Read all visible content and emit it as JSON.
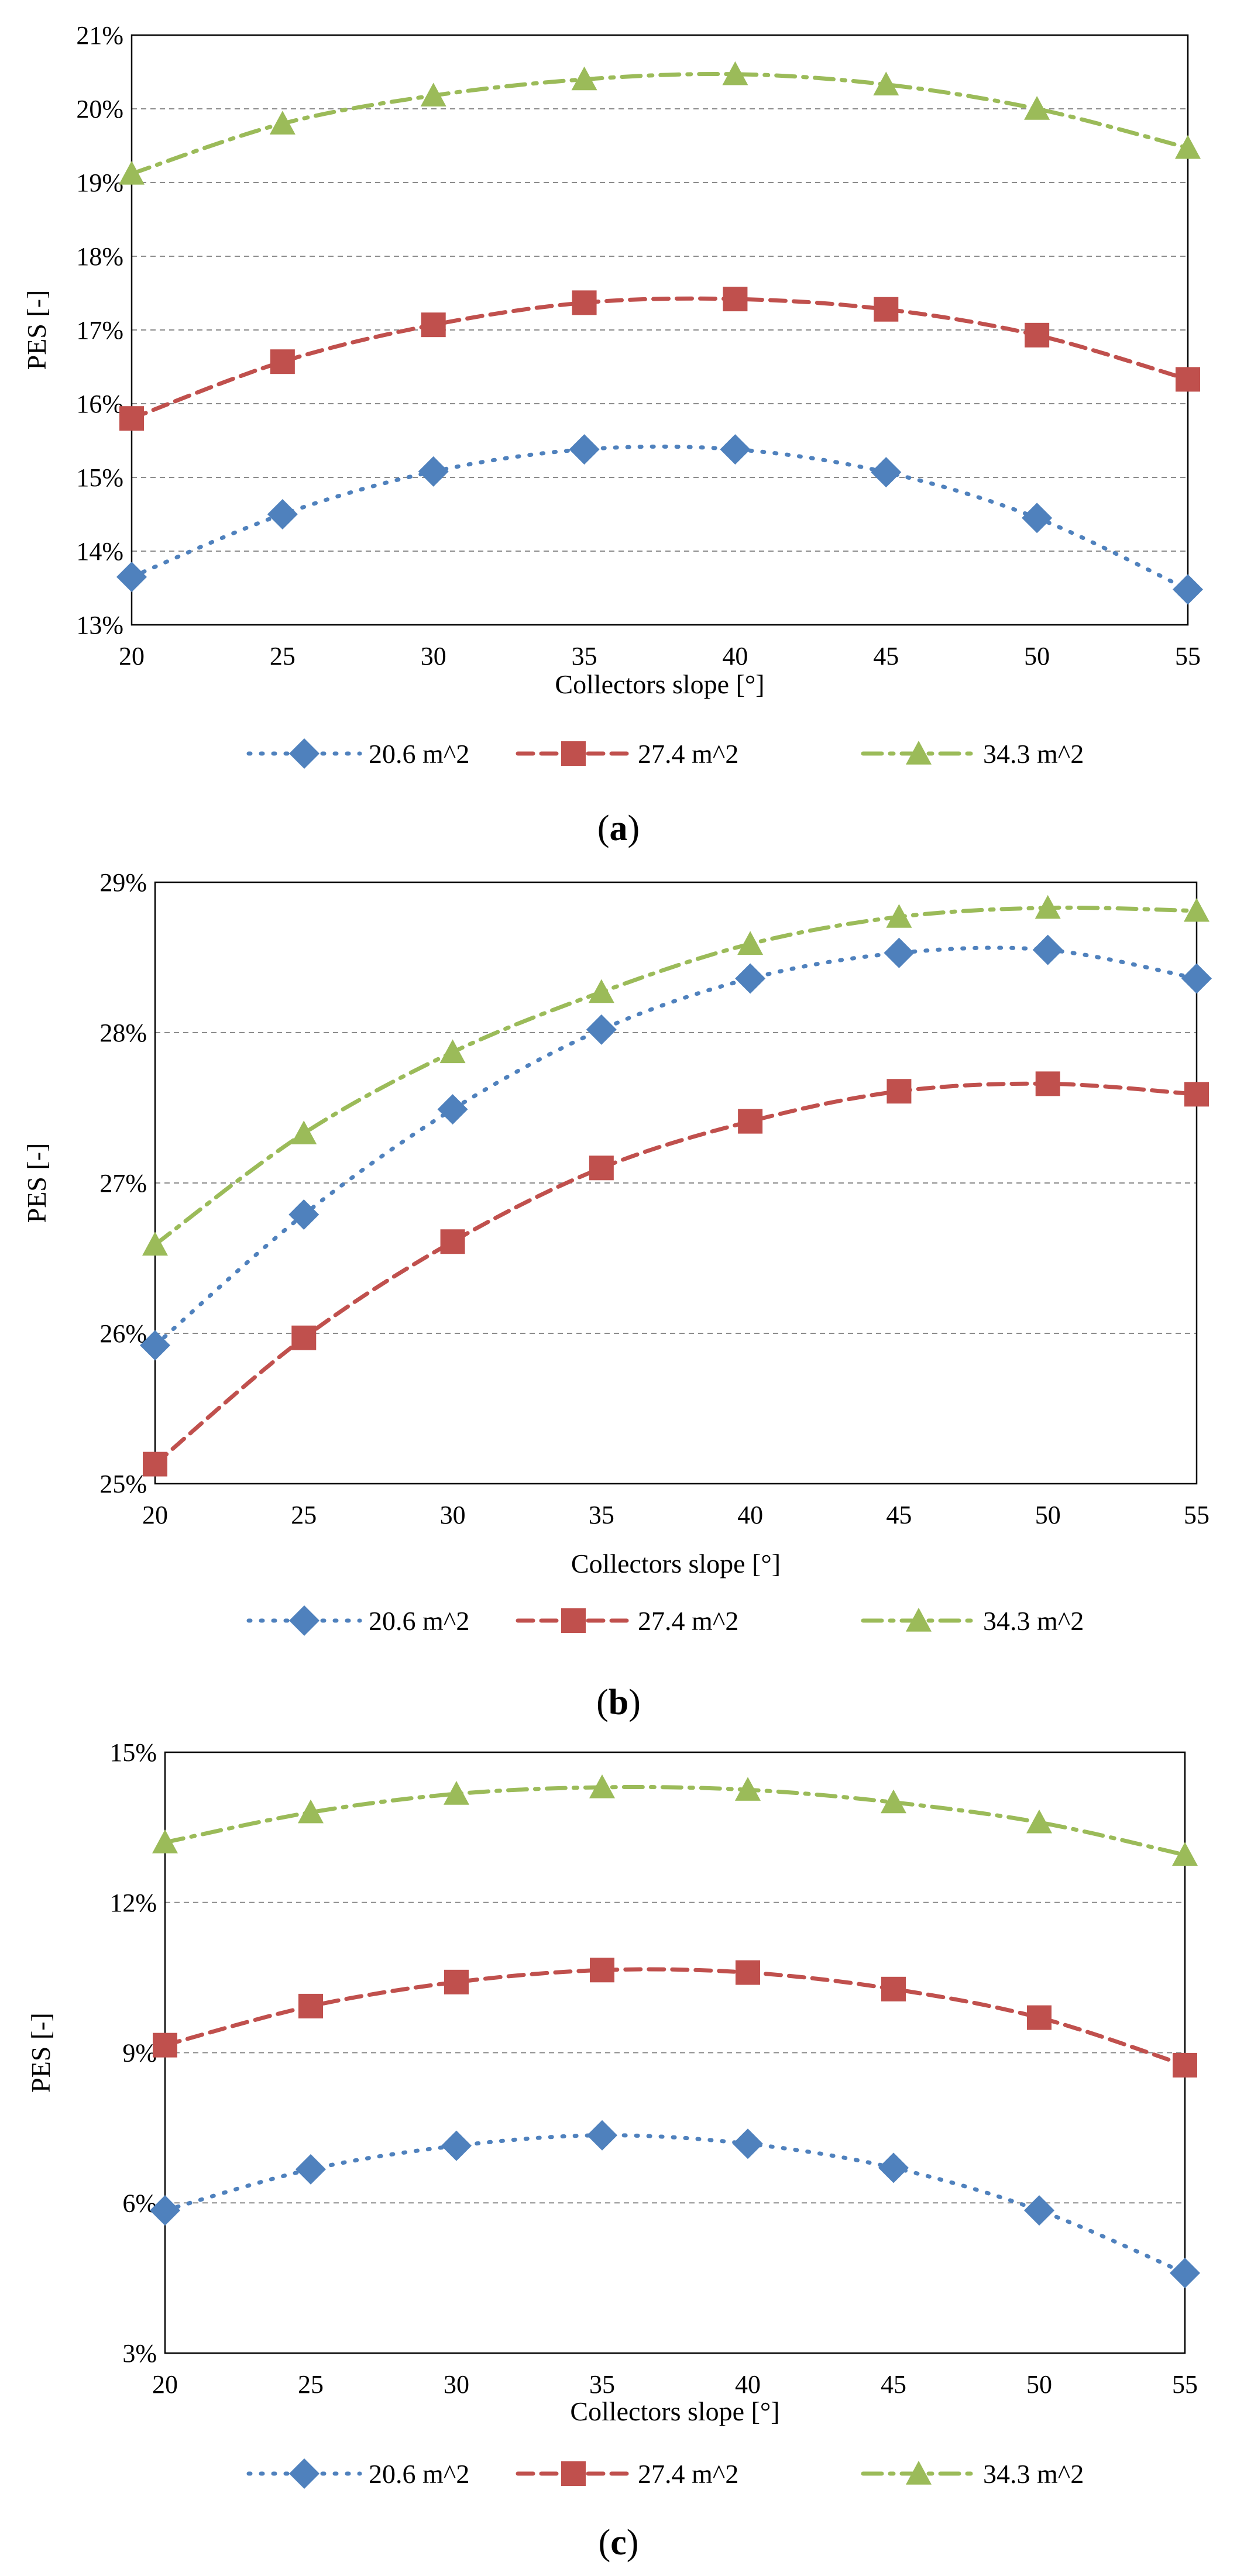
{
  "chart_data": [
    {
      "type": "line",
      "panel": "a",
      "caption_open": "(",
      "caption_letter": "a",
      "caption_close": ")",
      "xlabel": "Collectors slope [°]",
      "ylabel": "PES [-]",
      "x": [
        20,
        25,
        30,
        35,
        40,
        45,
        50,
        55
      ],
      "x_tick_labels": [
        "20",
        "25",
        "30",
        "35",
        "40",
        "45",
        "50",
        "55"
      ],
      "ylim": [
        13,
        21
      ],
      "y_ticks": [
        13,
        14,
        15,
        16,
        17,
        18,
        19,
        20,
        21
      ],
      "y_tick_labels": [
        "13%",
        "14%",
        "15%",
        "16%",
        "17%",
        "18%",
        "19%",
        "20%",
        "21%"
      ],
      "grid": "horizontal dashed",
      "legend_position": "bottom",
      "series": [
        {
          "name": "20.6 m^2",
          "color": "#4F81BD",
          "marker": "diamond",
          "line_style": "dotted",
          "values": [
            13.65,
            14.5,
            15.08,
            15.38,
            15.38,
            15.07,
            14.45,
            13.48
          ]
        },
        {
          "name": "27.4 m^2",
          "color": "#C0504D",
          "marker": "square",
          "line_style": "dashed",
          "values": [
            15.8,
            16.57,
            17.07,
            17.37,
            17.42,
            17.28,
            16.93,
            16.33
          ]
        },
        {
          "name": "34.3 m^2",
          "color": "#9BBB59",
          "marker": "triangle",
          "line_style": "dash-dot",
          "values": [
            19.12,
            19.8,
            20.18,
            20.4,
            20.47,
            20.33,
            20.0,
            19.47
          ]
        }
      ]
    },
    {
      "type": "line",
      "panel": "b",
      "caption_open": "(",
      "caption_letter": "b",
      "caption_close": ")",
      "xlabel": "Collectors slope [°]",
      "ylabel": "PES [-]",
      "x": [
        20,
        25,
        30,
        35,
        40,
        45,
        50,
        55
      ],
      "x_tick_labels": [
        "20",
        "25",
        "30",
        "35",
        "40",
        "45",
        "50",
        "55"
      ],
      "ylim": [
        25,
        29
      ],
      "y_ticks": [
        25,
        26,
        27,
        28,
        29
      ],
      "y_tick_labels": [
        "25%",
        "26%",
        "27%",
        "28%",
        "29%"
      ],
      "grid": "horizontal dashed",
      "legend_position": "bottom",
      "series": [
        {
          "name": "20.6 m^2",
          "color": "#4F81BD",
          "marker": "diamond",
          "line_style": "dotted",
          "values": [
            25.92,
            26.79,
            27.49,
            28.02,
            28.36,
            28.53,
            28.55,
            28.36
          ]
        },
        {
          "name": "27.4 m^2",
          "color": "#C0504D",
          "marker": "square",
          "line_style": "dashed",
          "values": [
            25.13,
            25.97,
            26.61,
            27.1,
            27.41,
            27.61,
            27.66,
            27.59
          ]
        },
        {
          "name": "34.3 m^2",
          "color": "#9BBB59",
          "marker": "triangle",
          "line_style": "dash-dot",
          "values": [
            26.59,
            27.33,
            27.87,
            28.27,
            28.59,
            28.77,
            28.83,
            28.81
          ]
        }
      ]
    },
    {
      "type": "line",
      "panel": "c",
      "caption_open": "(",
      "caption_letter": "c",
      "caption_close": ")",
      "xlabel": "Collectors slope [°]",
      "ylabel": "PES [-]",
      "x": [
        20,
        25,
        30,
        35,
        40,
        45,
        50,
        55
      ],
      "x_tick_labels": [
        "20",
        "25",
        "30",
        "35",
        "40",
        "45",
        "50",
        "55"
      ],
      "ylim": [
        3,
        15
      ],
      "y_ticks": [
        3,
        6,
        9,
        12,
        15
      ],
      "y_tick_labels": [
        "3%",
        "6%",
        "9%",
        "12%",
        "15%"
      ],
      "grid": "horizontal dashed",
      "legend_position": "bottom",
      "series": [
        {
          "name": "20.6 m^2",
          "color": "#4F81BD",
          "marker": "diamond",
          "line_style": "dotted",
          "values": [
            5.85,
            6.67,
            7.14,
            7.35,
            7.18,
            6.7,
            5.85,
            4.6
          ]
        },
        {
          "name": "27.4 m^2",
          "color": "#C0504D",
          "marker": "square",
          "line_style": "dashed",
          "values": [
            9.15,
            9.93,
            10.41,
            10.65,
            10.6,
            10.27,
            9.7,
            8.75
          ]
        },
        {
          "name": "34.3 m^2",
          "color": "#9BBB59",
          "marker": "triangle",
          "line_style": "dash-dot",
          "values": [
            13.2,
            13.8,
            14.17,
            14.3,
            14.25,
            14.0,
            13.6,
            12.95
          ]
        }
      ]
    }
  ]
}
